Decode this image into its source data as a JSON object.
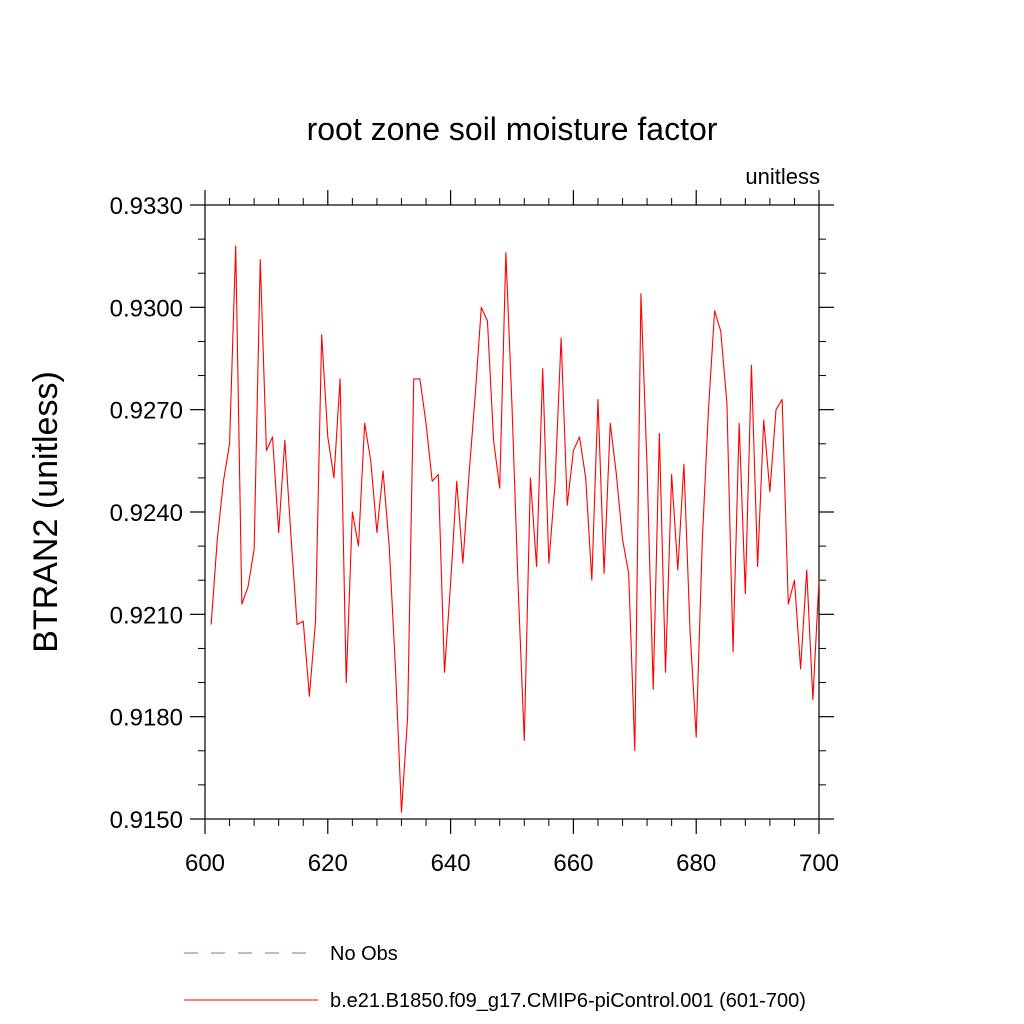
{
  "chart_data": {
    "type": "line",
    "title": "root zone soil moisture factor",
    "units_label": "unitless",
    "xlabel": "",
    "ylabel": "BTRAN2  (unitless)",
    "xlim": [
      600,
      700
    ],
    "ylim": [
      0.915,
      0.933
    ],
    "x_ticks": [
      600,
      620,
      640,
      660,
      680,
      700
    ],
    "x_tick_labels": [
      "600",
      "620",
      "640",
      "660",
      "680",
      "700"
    ],
    "y_ticks": [
      0.915,
      0.918,
      0.921,
      0.924,
      0.927,
      0.93,
      0.933
    ],
    "y_tick_labels": [
      "0.9150",
      "0.9180",
      "0.9210",
      "0.9240",
      "0.9270",
      "0.9300",
      "0.9330"
    ],
    "grid": false,
    "legend_position": "bottom",
    "series": [
      {
        "name": "No Obs",
        "color": "#7b72c4",
        "style": "dashed",
        "x": [],
        "values": []
      },
      {
        "name": "b.e21.B1850.f09_g17.CMIP6-piControl.001 (601-700)",
        "color": "#ff0000",
        "style": "solid",
        "x": [
          601,
          602,
          603,
          604,
          605,
          606,
          607,
          608,
          609,
          610,
          611,
          612,
          613,
          614,
          615,
          616,
          617,
          618,
          619,
          620,
          621,
          622,
          623,
          624,
          625,
          626,
          627,
          628,
          629,
          630,
          631,
          632,
          633,
          634,
          635,
          636,
          637,
          638,
          639,
          640,
          641,
          642,
          643,
          644,
          645,
          646,
          647,
          648,
          649,
          650,
          651,
          652,
          653,
          654,
          655,
          656,
          657,
          658,
          659,
          660,
          661,
          662,
          663,
          664,
          665,
          666,
          667,
          668,
          669,
          670,
          671,
          672,
          673,
          674,
          675,
          676,
          677,
          678,
          679,
          680,
          681,
          682,
          683,
          684,
          685,
          686,
          687,
          688,
          689,
          690,
          691,
          692,
          693,
          694,
          695,
          696,
          697,
          698,
          699,
          700
        ],
        "values": [
          0.9207,
          0.9232,
          0.9249,
          0.926,
          0.9318,
          0.9213,
          0.9218,
          0.9229,
          0.9314,
          0.9258,
          0.9262,
          0.9234,
          0.9261,
          0.9233,
          0.9207,
          0.9208,
          0.9186,
          0.9208,
          0.9292,
          0.9262,
          0.925,
          0.9279,
          0.919,
          0.924,
          0.923,
          0.9266,
          0.9255,
          0.9234,
          0.9252,
          0.923,
          0.9195,
          0.9152,
          0.918,
          0.9279,
          0.9279,
          0.9266,
          0.9249,
          0.9251,
          0.9193,
          0.9219,
          0.9249,
          0.9225,
          0.9251,
          0.9274,
          0.93,
          0.9296,
          0.9261,
          0.9247,
          0.9316,
          0.9271,
          0.9218,
          0.9173,
          0.925,
          0.9224,
          0.9282,
          0.9225,
          0.9248,
          0.9291,
          0.9242,
          0.9258,
          0.9262,
          0.925,
          0.922,
          0.9273,
          0.9222,
          0.9266,
          0.9251,
          0.9232,
          0.9222,
          0.917,
          0.9304,
          0.9253,
          0.9188,
          0.9263,
          0.9193,
          0.9251,
          0.9223,
          0.9254,
          0.9205,
          0.9174,
          0.9232,
          0.927,
          0.9299,
          0.9293,
          0.9272,
          0.9199,
          0.9266,
          0.9216,
          0.9283,
          0.9224,
          0.9267,
          0.9246,
          0.927,
          0.9273,
          0.9213,
          0.922,
          0.9194,
          0.9223,
          0.9185,
          0.922
        ]
      }
    ]
  }
}
